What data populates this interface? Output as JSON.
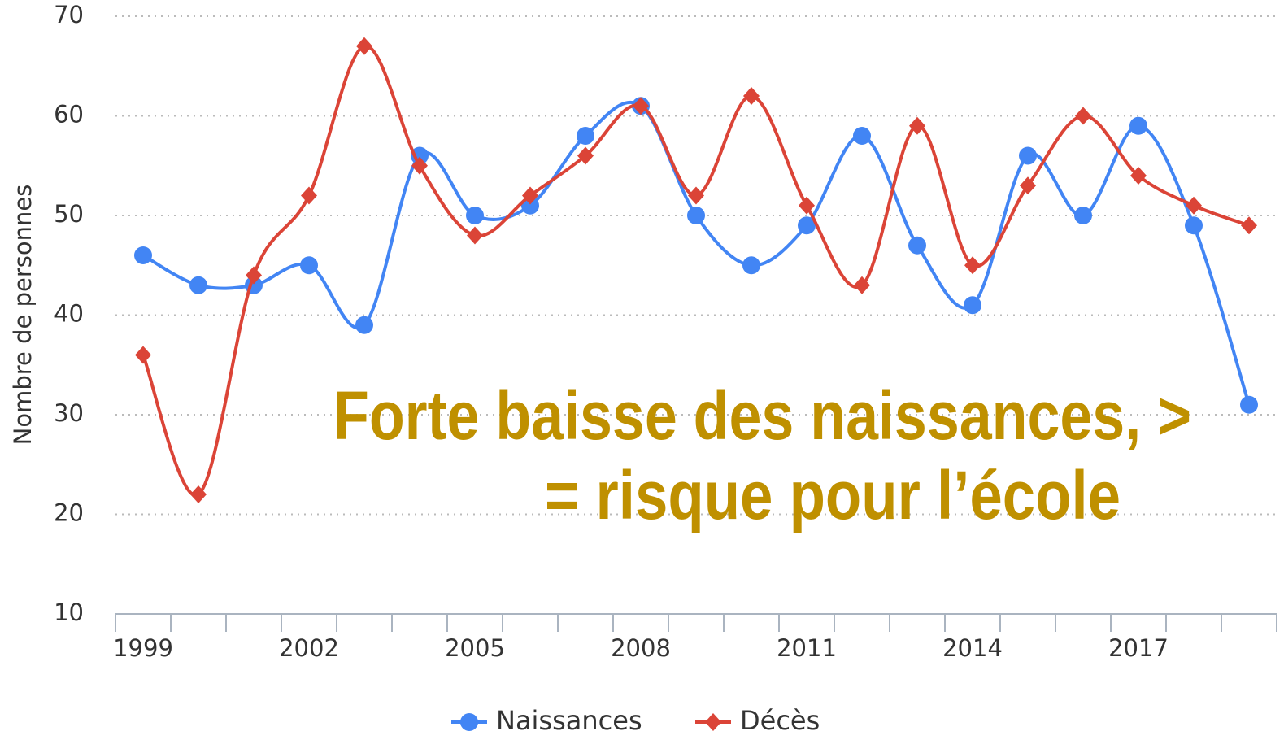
{
  "chart_data": {
    "type": "line",
    "ylabel": "Nombre de personnes",
    "annotation": [
      "Forte baisse des naissances, >",
      "= risque pour l’école"
    ],
    "x": [
      1999,
      2000,
      2001,
      2002,
      2003,
      2004,
      2005,
      2006,
      2007,
      2008,
      2009,
      2010,
      2011,
      2012,
      2013,
      2014,
      2015,
      2016,
      2017,
      2018,
      2019
    ],
    "xlim": [
      1998.5,
      2019.5
    ],
    "xticks": [
      1999,
      2002,
      2005,
      2008,
      2011,
      2014,
      2017
    ],
    "ylim": [
      10,
      70
    ],
    "yticks": [
      10,
      20,
      30,
      40,
      50,
      60,
      70
    ],
    "grid": true,
    "legend": "bottom",
    "series": [
      {
        "name": "Naissances",
        "color": "#4285f4",
        "marker": "circle",
        "values": [
          46,
          43,
          43,
          45,
          39,
          56,
          50,
          51,
          58,
          61,
          50,
          45,
          49,
          58,
          47,
          41,
          56,
          50,
          59,
          49,
          31
        ]
      },
      {
        "name": "Décès",
        "color": "#db4437",
        "marker": "diamond",
        "values": [
          36,
          22,
          44,
          52,
          67,
          55,
          48,
          52,
          56,
          61,
          52,
          62,
          51,
          43,
          59,
          45,
          53,
          60,
          54,
          51,
          49
        ]
      }
    ]
  }
}
